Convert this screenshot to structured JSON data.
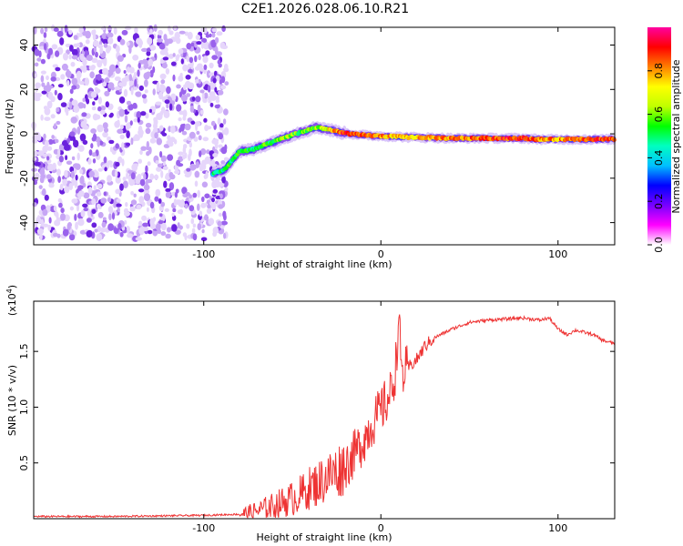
{
  "chart_data": [
    {
      "type": "heatmap",
      "title": "C2E1.2026.028.06.10.R21",
      "xlabel": "Height of straight line (km)",
      "ylabel": "Frequency (Hz)",
      "xlim": [
        -196,
        132
      ],
      "ylim": [
        -50,
        48
      ],
      "xticks": [
        -100,
        0,
        100
      ],
      "yticks": [
        -40,
        -20,
        0,
        20,
        40
      ],
      "colorbar": {
        "label": "Normalized spectral amplitude",
        "range": [
          0,
          1
        ],
        "ticks": [
          0,
          0.2,
          0.4,
          0.6,
          0.8
        ],
        "colors": [
          "#ffffff",
          "#ff00ff",
          "#7700ff",
          "#0000ff",
          "#00c0ff",
          "#00ffc0",
          "#00ff00",
          "#c0ff00",
          "#ffff00",
          "#ff8000",
          "#ff0000",
          "#ff00a0"
        ]
      },
      "noise_region": {
        "x_range": [
          -196,
          -85
        ],
        "note": "scattered low-amplitude noise"
      },
      "track": {
        "x": [
          -95,
          -88,
          -80,
          -72,
          -62,
          -52,
          -44,
          -36,
          -30,
          -22,
          -12,
          0,
          15,
          40,
          60,
          80,
          90,
          100,
          110,
          120,
          132
        ],
        "freq": [
          -18,
          -16,
          -8,
          -7,
          -4,
          -1,
          1,
          3,
          2,
          0.5,
          -0.5,
          -1,
          -1.5,
          -2,
          -2,
          -2,
          -2.5,
          -2.5,
          -2.5,
          -2.5,
          -2.5
        ],
        "amplitude": [
          0.45,
          0.5,
          0.55,
          0.5,
          0.55,
          0.6,
          0.55,
          0.6,
          0.7,
          0.9,
          0.85,
          0.8,
          0.75,
          0.8,
          0.85,
          0.9,
          0.8,
          0.8,
          0.85,
          0.9,
          0.85
        ]
      }
    },
    {
      "type": "line",
      "xlabel": "Height of straight line (km)",
      "ylabel": "SNR (10 * v/v)",
      "exponent_label": "(x10^4)",
      "exponent_base": "(x10",
      "exponent_power": "4",
      "exponent_close": ")",
      "xlim": [
        -196,
        132
      ],
      "ylim": [
        0,
        1.95
      ],
      "xticks": [
        -100,
        0,
        100
      ],
      "yticks": [
        0.5,
        1.0,
        1.5
      ],
      "series": [
        {
          "name": "SNR",
          "color": "#ee3333",
          "x": [
            -196,
            -150,
            -100,
            -80,
            -70,
            -60,
            -50,
            -45,
            -40,
            -35,
            -30,
            -25,
            -20,
            -15,
            -10,
            -5,
            0,
            5,
            8,
            10,
            11,
            12,
            15,
            20,
            25,
            30,
            40,
            50,
            60,
            70,
            80,
            90,
            95,
            100,
            105,
            110,
            120,
            125,
            132
          ],
          "y": [
            0.02,
            0.02,
            0.03,
            0.04,
            0.07,
            0.12,
            0.18,
            0.22,
            0.28,
            0.32,
            0.38,
            0.42,
            0.48,
            0.58,
            0.7,
            0.85,
            0.97,
            1.1,
            1.3,
            1.75,
            1.55,
            1.28,
            1.35,
            1.42,
            1.55,
            1.62,
            1.7,
            1.76,
            1.78,
            1.79,
            1.8,
            1.78,
            1.8,
            1.7,
            1.65,
            1.69,
            1.65,
            1.6,
            1.57
          ]
        }
      ]
    }
  ]
}
